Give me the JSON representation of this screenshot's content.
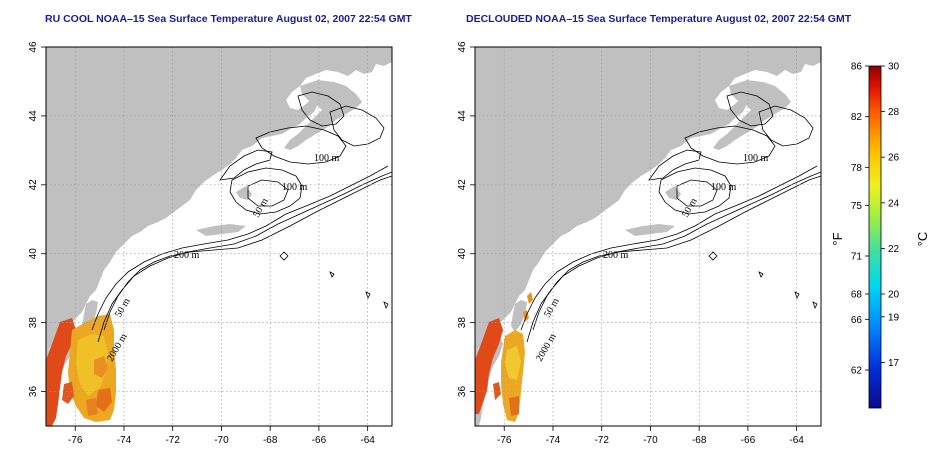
{
  "panels": [
    {
      "id": "left",
      "title": "RU COOL NOAA–15 Sea Surface Temperature August 02, 2007 22:54 GMT",
      "variant": "full"
    },
    {
      "id": "right",
      "title": "DECLOUDED NOAA–15 Sea Surface Temperature August 02, 2007 22:54 GMT",
      "variant": "declouded"
    }
  ],
  "axes": {
    "lon_ticks": [
      "-76",
      "-74",
      "-72",
      "-70",
      "-68",
      "-66",
      "-64"
    ],
    "lat_ticks": [
      "36",
      "38",
      "40",
      "42",
      "44",
      "46"
    ],
    "lon_range": [
      -77.2,
      -63.0
    ],
    "lat_range": [
      35.0,
      46.0
    ],
    "grid": "dotted"
  },
  "contour_labels": {
    "m100_a": "100 m",
    "m100_b": "100 m",
    "m50_a": "50 m",
    "m200": "200 m",
    "m50_b": "50 m",
    "m2000": "2000 m"
  },
  "colorbar": {
    "fahrenheit_ticks": [
      "86",
      "82",
      "78",
      "75",
      "71",
      "68",
      "66",
      "62"
    ],
    "celsius_ticks": [
      "30",
      "28",
      "26",
      "24",
      "22",
      "20",
      "19",
      "17"
    ],
    "fahrenheit_unit": "°F",
    "celsius_unit": "°C",
    "range_celsius": [
      15,
      30
    ]
  },
  "colors": {
    "land": "#c0c0c0",
    "ocean": "#ffffff",
    "title": "#1a1a9c",
    "grid": "#9a9a9a",
    "sst_warm": "#e09020",
    "sst_hot": "#e04010"
  }
}
